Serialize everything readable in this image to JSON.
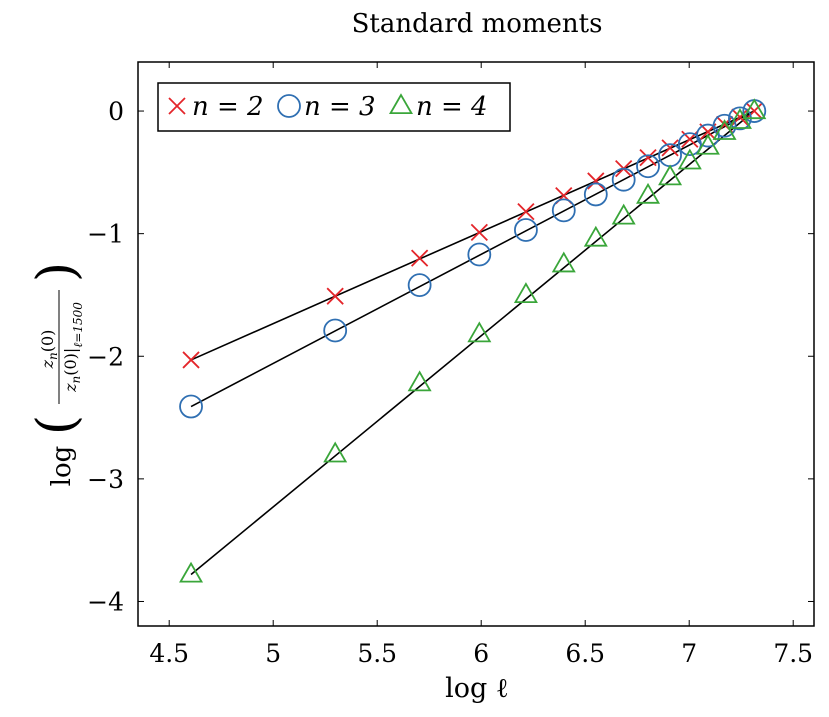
{
  "chart_data": {
    "type": "scatter",
    "title": "Standard moments",
    "xlabel": "log ℓ",
    "ylabel_parts": {
      "log": "log",
      "num": "z",
      "num_sub": "n",
      "num_arg": "(0)",
      "den": "z",
      "den_sub": "n",
      "den_arg": "(0)|",
      "den_cond": "ℓ=1500"
    },
    "xlim": [
      4.35,
      7.6
    ],
    "ylim": [
      -4.2,
      0.4
    ],
    "xticks": [
      4.5,
      5,
      5.5,
      6,
      6.5,
      7,
      7.5
    ],
    "xtick_labels": [
      "4.5",
      "5",
      "5.5",
      "6",
      "6.5",
      "7",
      "7.5"
    ],
    "yticks": [
      0,
      -1,
      -2,
      -3,
      -4
    ],
    "ytick_labels": [
      "0",
      "−1",
      "−2",
      "−3",
      "−4"
    ],
    "legend_position": "top-left",
    "x": [
      4.605,
      5.298,
      5.704,
      5.991,
      6.215,
      6.397,
      6.551,
      6.685,
      6.802,
      6.908,
      7.003,
      7.09,
      7.17,
      7.244,
      7.313
    ],
    "series": [
      {
        "name": "n = 2",
        "marker": "cross",
        "color": "#e4252a",
        "values": [
          -2.03,
          -1.51,
          -1.2,
          -0.99,
          -0.82,
          -0.69,
          -0.57,
          -0.47,
          -0.38,
          -0.3,
          -0.23,
          -0.17,
          -0.11,
          -0.05,
          0.0
        ],
        "fit": [
          [
            4.605,
            -2.03
          ],
          [
            7.313,
            0.0
          ]
        ]
      },
      {
        "name": "n = 3",
        "marker": "circle",
        "color": "#2f6fb2",
        "values": [
          -2.41,
          -1.79,
          -1.42,
          -1.17,
          -0.97,
          -0.81,
          -0.68,
          -0.56,
          -0.45,
          -0.36,
          -0.27,
          -0.2,
          -0.12,
          -0.06,
          0.0
        ],
        "fit": [
          [
            4.605,
            -2.41
          ],
          [
            7.313,
            0.0
          ]
        ]
      },
      {
        "name": "n = 4",
        "marker": "triangle",
        "color": "#3aa63a",
        "values": [
          -3.78,
          -2.8,
          -2.22,
          -1.82,
          -1.5,
          -1.25,
          -1.04,
          -0.86,
          -0.69,
          -0.54,
          -0.41,
          -0.29,
          -0.17,
          -0.08,
          0.0
        ],
        "fit": [
          [
            4.605,
            -3.78
          ],
          [
            7.313,
            0.0
          ]
        ]
      }
    ]
  }
}
